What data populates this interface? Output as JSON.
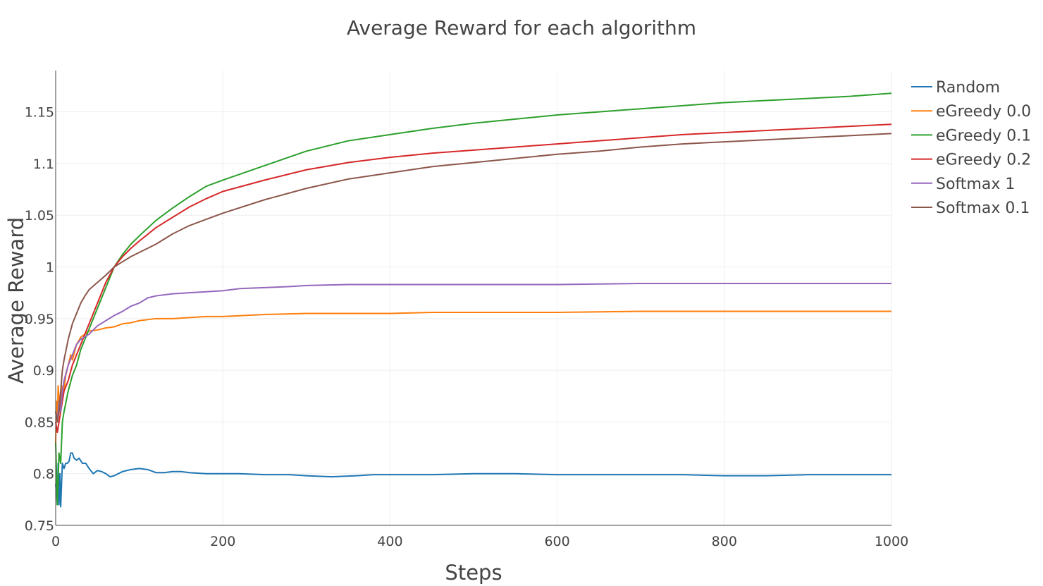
{
  "chart_data": {
    "type": "line",
    "title": "Average Reward for each algorithm",
    "xlabel": "Steps",
    "ylabel": "Average Reward",
    "xlim": [
      0,
      1000
    ],
    "ylim": [
      0.75,
      1.19
    ],
    "xticks": [
      0,
      200,
      400,
      600,
      800,
      1000
    ],
    "xtick_labels": [
      "0",
      "200",
      "400",
      "600",
      "800",
      "1000"
    ],
    "yticks": [
      0.75,
      0.8,
      0.85,
      0.9,
      0.95,
      1.0,
      1.05,
      1.1,
      1.15
    ],
    "ytick_labels": [
      "0.75",
      "0.8",
      "0.85",
      "0.9",
      "0.95",
      "1",
      "1.05",
      "1.1",
      "1.15"
    ],
    "grid": true,
    "legend_position": "top-right",
    "series": [
      {
        "name": "Random",
        "color": "#1f77b4",
        "x": [
          0,
          2,
          3,
          4,
          5,
          6,
          8,
          10,
          12,
          14,
          16,
          18,
          20,
          22,
          25,
          28,
          32,
          36,
          40,
          45,
          50,
          55,
          60,
          65,
          70,
          75,
          80,
          90,
          100,
          110,
          120,
          130,
          140,
          150,
          160,
          180,
          200,
          220,
          250,
          280,
          300,
          330,
          360,
          380,
          400,
          450,
          500,
          550,
          600,
          650,
          700,
          750,
          800,
          850,
          900,
          950,
          1000
        ],
        "y": [
          0.79,
          0.77,
          0.81,
          0.77,
          0.8,
          0.768,
          0.81,
          0.805,
          0.81,
          0.81,
          0.812,
          0.82,
          0.82,
          0.815,
          0.813,
          0.815,
          0.81,
          0.81,
          0.805,
          0.8,
          0.803,
          0.802,
          0.8,
          0.797,
          0.798,
          0.8,
          0.802,
          0.804,
          0.805,
          0.804,
          0.801,
          0.801,
          0.802,
          0.802,
          0.801,
          0.8,
          0.8,
          0.8,
          0.799,
          0.799,
          0.798,
          0.797,
          0.798,
          0.799,
          0.799,
          0.799,
          0.8,
          0.8,
          0.799,
          0.799,
          0.799,
          0.799,
          0.798,
          0.798,
          0.799,
          0.799,
          0.799
        ]
      },
      {
        "name": "eGreedy 0.0",
        "color": "#ff7f0e",
        "x": [
          0,
          1,
          2,
          3,
          5,
          7,
          10,
          12,
          15,
          18,
          20,
          25,
          30,
          35,
          40,
          50,
          60,
          70,
          80,
          90,
          100,
          120,
          140,
          160,
          180,
          200,
          250,
          300,
          350,
          400,
          450,
          500,
          600,
          700,
          800,
          900,
          1000
        ],
        "y": [
          0.83,
          0.87,
          0.85,
          0.885,
          0.86,
          0.885,
          0.88,
          0.895,
          0.905,
          0.915,
          0.91,
          0.925,
          0.932,
          0.935,
          0.938,
          0.939,
          0.941,
          0.942,
          0.945,
          0.946,
          0.948,
          0.95,
          0.95,
          0.951,
          0.952,
          0.952,
          0.954,
          0.955,
          0.955,
          0.955,
          0.956,
          0.956,
          0.956,
          0.957,
          0.957,
          0.957,
          0.957
        ]
      },
      {
        "name": "eGreedy 0.1",
        "color": "#2ca02c",
        "x": [
          0,
          2,
          4,
          6,
          8,
          10,
          15,
          20,
          25,
          30,
          40,
          50,
          60,
          70,
          80,
          90,
          100,
          120,
          140,
          160,
          180,
          200,
          250,
          300,
          350,
          400,
          450,
          500,
          550,
          600,
          650,
          700,
          750,
          800,
          850,
          900,
          950,
          1000
        ],
        "y": [
          0.83,
          0.77,
          0.82,
          0.81,
          0.85,
          0.86,
          0.88,
          0.895,
          0.905,
          0.92,
          0.94,
          0.96,
          0.98,
          1.0,
          1.012,
          1.022,
          1.03,
          1.045,
          1.057,
          1.068,
          1.078,
          1.084,
          1.098,
          1.112,
          1.122,
          1.128,
          1.134,
          1.139,
          1.143,
          1.147,
          1.15,
          1.153,
          1.156,
          1.159,
          1.161,
          1.163,
          1.165,
          1.168
        ]
      },
      {
        "name": "eGreedy 0.2",
        "color": "#d62728",
        "x": [
          0,
          2,
          4,
          6,
          8,
          10,
          15,
          20,
          25,
          30,
          40,
          50,
          60,
          70,
          80,
          90,
          100,
          120,
          140,
          160,
          180,
          200,
          250,
          300,
          350,
          400,
          450,
          500,
          550,
          600,
          650,
          700,
          750,
          800,
          850,
          900,
          950,
          1000
        ],
        "y": [
          0.85,
          0.84,
          0.85,
          0.86,
          0.87,
          0.88,
          0.89,
          0.905,
          0.915,
          0.925,
          0.945,
          0.965,
          0.985,
          1.0,
          1.01,
          1.018,
          1.025,
          1.038,
          1.048,
          1.058,
          1.066,
          1.073,
          1.084,
          1.094,
          1.101,
          1.106,
          1.11,
          1.113,
          1.116,
          1.119,
          1.122,
          1.125,
          1.128,
          1.13,
          1.132,
          1.134,
          1.136,
          1.138
        ]
      },
      {
        "name": "Softmax 1",
        "color": "#9467bd",
        "x": [
          0,
          2,
          4,
          6,
          8,
          10,
          15,
          20,
          25,
          30,
          40,
          50,
          60,
          70,
          80,
          90,
          100,
          110,
          120,
          140,
          160,
          180,
          200,
          220,
          250,
          280,
          300,
          350,
          400,
          450,
          500,
          600,
          700,
          800,
          900,
          1000
        ],
        "y": [
          0.86,
          0.85,
          0.87,
          0.86,
          0.88,
          0.89,
          0.905,
          0.915,
          0.925,
          0.93,
          0.935,
          0.943,
          0.948,
          0.953,
          0.957,
          0.962,
          0.965,
          0.97,
          0.972,
          0.974,
          0.975,
          0.976,
          0.977,
          0.979,
          0.98,
          0.981,
          0.982,
          0.983,
          0.983,
          0.983,
          0.983,
          0.983,
          0.984,
          0.984,
          0.984,
          0.984
        ]
      },
      {
        "name": "Softmax 0.1",
        "color": "#8c564b",
        "x": [
          0,
          2,
          4,
          6,
          8,
          10,
          15,
          20,
          25,
          30,
          35,
          40,
          50,
          60,
          70,
          80,
          90,
          100,
          120,
          140,
          160,
          180,
          200,
          250,
          300,
          350,
          400,
          450,
          500,
          550,
          600,
          650,
          700,
          750,
          800,
          850,
          900,
          950,
          1000
        ],
        "y": [
          0.86,
          0.85,
          0.86,
          0.88,
          0.9,
          0.91,
          0.93,
          0.945,
          0.955,
          0.965,
          0.972,
          0.978,
          0.985,
          0.992,
          1.0,
          1.005,
          1.01,
          1.014,
          1.022,
          1.032,
          1.04,
          1.046,
          1.052,
          1.065,
          1.076,
          1.085,
          1.091,
          1.097,
          1.101,
          1.105,
          1.109,
          1.112,
          1.116,
          1.119,
          1.121,
          1.123,
          1.125,
          1.127,
          1.129
        ]
      }
    ]
  }
}
